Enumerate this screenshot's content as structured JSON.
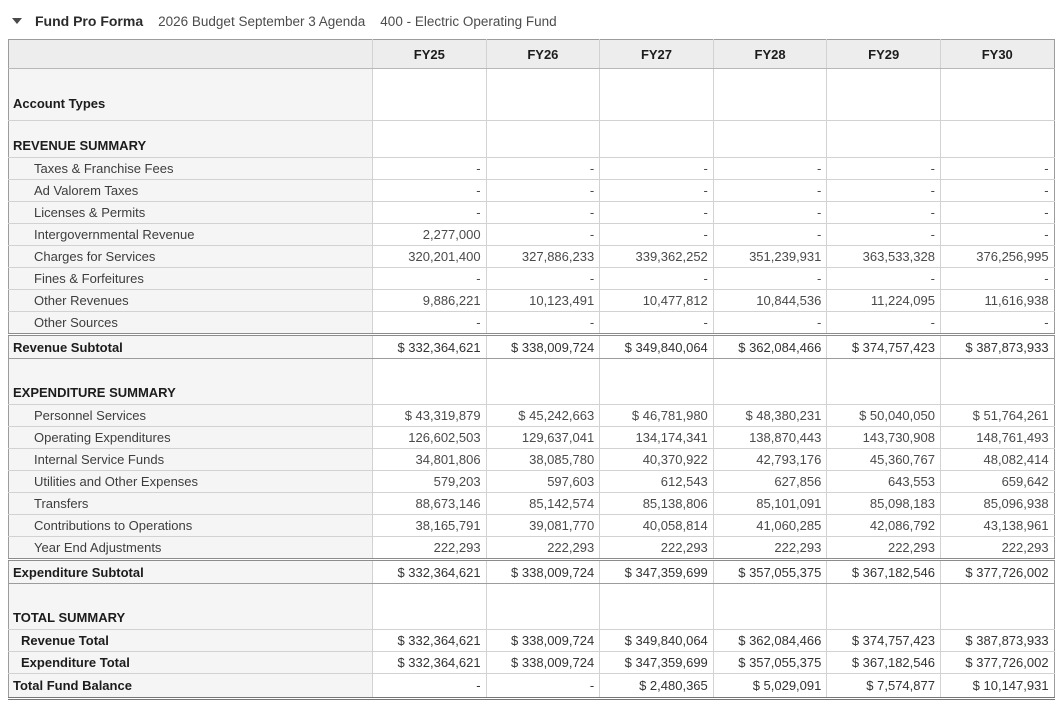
{
  "header": {
    "title": "Fund Pro Forma",
    "budget_label": "2026 Budget September 3 Agenda",
    "fund_label": "400 - Electric Operating Fund"
  },
  "table": {
    "columns": [
      "FY25",
      "FY26",
      "FY27",
      "FY28",
      "FY29",
      "FY30"
    ],
    "rows": [
      {
        "label": "Account Types",
        "type": "sectionTall",
        "values": [
          "",
          "",
          "",
          "",
          "",
          ""
        ]
      },
      {
        "label": "REVENUE SUMMARY",
        "type": "section",
        "values": [
          "",
          "",
          "",
          "",
          "",
          ""
        ]
      },
      {
        "label": "Taxes & Franchise Fees",
        "type": "item",
        "values": [
          "-",
          "-",
          "-",
          "-",
          "-",
          "-"
        ]
      },
      {
        "label": "Ad Valorem Taxes",
        "type": "item",
        "values": [
          "-",
          "-",
          "-",
          "-",
          "-",
          "-"
        ]
      },
      {
        "label": "Licenses & Permits",
        "type": "item",
        "values": [
          "-",
          "-",
          "-",
          "-",
          "-",
          "-"
        ]
      },
      {
        "label": "Intergovernmental Revenue",
        "type": "item",
        "values": [
          "2,277,000",
          "-",
          "-",
          "-",
          "-",
          "-"
        ]
      },
      {
        "label": "Charges for Services",
        "type": "item",
        "values": [
          "320,201,400",
          "327,886,233",
          "339,362,252",
          "351,239,931",
          "363,533,328",
          "376,256,995"
        ]
      },
      {
        "label": "Fines & Forfeitures",
        "type": "item",
        "values": [
          "-",
          "-",
          "-",
          "-",
          "-",
          "-"
        ]
      },
      {
        "label": "Other Revenues",
        "type": "item",
        "values": [
          "9,886,221",
          "10,123,491",
          "10,477,812",
          "10,844,536",
          "11,224,095",
          "11,616,938"
        ]
      },
      {
        "label": "Other Sources",
        "type": "item",
        "values": [
          "-",
          "-",
          "-",
          "-",
          "-",
          "-"
        ]
      },
      {
        "label": "Revenue Subtotal",
        "type": "subtotal",
        "values": [
          "$ 332,364,621",
          "$ 338,009,724",
          "$ 349,840,064",
          "$ 362,084,466",
          "$ 374,757,423",
          "$ 387,873,933"
        ]
      },
      {
        "label": "EXPENDITURE SUMMARY",
        "type": "sectionGap",
        "values": [
          "",
          "",
          "",
          "",
          "",
          ""
        ]
      },
      {
        "label": "Personnel Services",
        "type": "item",
        "values": [
          "$ 43,319,879",
          "$ 45,242,663",
          "$ 46,781,980",
          "$ 48,380,231",
          "$ 50,040,050",
          "$ 51,764,261"
        ]
      },
      {
        "label": "Operating Expenditures",
        "type": "item",
        "values": [
          "126,602,503",
          "129,637,041",
          "134,174,341",
          "138,870,443",
          "143,730,908",
          "148,761,493"
        ]
      },
      {
        "label": "Internal Service Funds",
        "type": "item",
        "values": [
          "34,801,806",
          "38,085,780",
          "40,370,922",
          "42,793,176",
          "45,360,767",
          "48,082,414"
        ]
      },
      {
        "label": "Utilities and Other Expenses",
        "type": "item",
        "values": [
          "579,203",
          "597,603",
          "612,543",
          "627,856",
          "643,553",
          "659,642"
        ]
      },
      {
        "label": "Transfers",
        "type": "item",
        "values": [
          "88,673,146",
          "85,142,574",
          "85,138,806",
          "85,101,091",
          "85,098,183",
          "85,096,938"
        ]
      },
      {
        "label": "Contributions to Operations",
        "type": "item",
        "values": [
          "38,165,791",
          "39,081,770",
          "40,058,814",
          "41,060,285",
          "42,086,792",
          "43,138,961"
        ]
      },
      {
        "label": "Year End Adjustments",
        "type": "item",
        "values": [
          "222,293",
          "222,293",
          "222,293",
          "222,293",
          "222,293",
          "222,293"
        ]
      },
      {
        "label": "Expenditure Subtotal",
        "type": "subtotal",
        "values": [
          "$ 332,364,621",
          "$ 338,009,724",
          "$ 347,359,699",
          "$ 357,055,375",
          "$ 367,182,546",
          "$ 377,726,002"
        ]
      },
      {
        "label": "TOTAL SUMMARY",
        "type": "sectionGap",
        "values": [
          "",
          "",
          "",
          "",
          "",
          ""
        ]
      },
      {
        "label": "Revenue Total",
        "type": "totalItem",
        "values": [
          "$ 332,364,621",
          "$ 338,009,724",
          "$ 349,840,064",
          "$ 362,084,466",
          "$ 374,757,423",
          "$ 387,873,933"
        ]
      },
      {
        "label": "Expenditure Total",
        "type": "totalItem",
        "values": [
          "$ 332,364,621",
          "$ 338,009,724",
          "$ 347,359,699",
          "$ 357,055,375",
          "$ 367,182,546",
          "$ 377,726,002"
        ]
      },
      {
        "label": "Total Fund Balance",
        "type": "grand",
        "values": [
          "-",
          "-",
          "$ 2,480,365",
          "$ 5,029,091",
          "$ 7,574,877",
          "$ 10,147,931"
        ]
      }
    ]
  }
}
